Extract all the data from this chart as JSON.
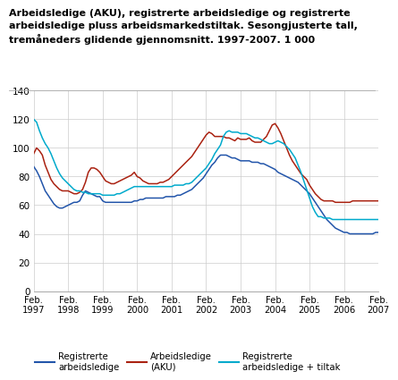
{
  "title": "Arbeidsledige (AKU), registrerte arbeidsledige og registrerte\narbeidsledige pluss arbeidsmarkedstiltak. Sesongjusterte tall,\ntremåneders glidende gjennomsnitt. 1997-2007. 1 000",
  "xlim": [
    0,
    120
  ],
  "ylim": [
    0,
    140
  ],
  "yticks": [
    0,
    20,
    40,
    60,
    80,
    100,
    120,
    140
  ],
  "xtick_positions": [
    0,
    12,
    24,
    36,
    48,
    60,
    72,
    84,
    96,
    108,
    120
  ],
  "xtick_labels": [
    "Feb.\n1997",
    "Feb.\n1998",
    "Feb.\n1999",
    "Feb.\n2000",
    "Feb.\n2001",
    "Feb.\n2002",
    "Feb.\n2003",
    "Feb.\n2004",
    "Feb.\n2005",
    "Feb.\n2006",
    "Feb.\n2007"
  ],
  "line_blue_color": "#2255aa",
  "line_red_color": "#aa2211",
  "line_cyan_color": "#00aacc",
  "legend_labels": [
    "Registrerte\narbeidsledige",
    "Arbeidsledige\n(AKU)",
    "Registrerte\narbeidsledige + tiltak"
  ],
  "blue": [
    87,
    84,
    80,
    75,
    70,
    67,
    64,
    61,
    59,
    58,
    58,
    59,
    60,
    61,
    62,
    62,
    63,
    67,
    70,
    69,
    68,
    67,
    66,
    66,
    63,
    62,
    62,
    62,
    62,
    62,
    62,
    62,
    62,
    62,
    62,
    63,
    63,
    64,
    64,
    65,
    65,
    65,
    65,
    65,
    65,
    65,
    66,
    66,
    66,
    66,
    67,
    67,
    68,
    69,
    70,
    71,
    73,
    75,
    77,
    79,
    82,
    85,
    88,
    90,
    93,
    95,
    95,
    95,
    94,
    93,
    93,
    92,
    91,
    91,
    91,
    91,
    90,
    90,
    90,
    89,
    89,
    88,
    87,
    86,
    85,
    83,
    82,
    81,
    80,
    79,
    78,
    77,
    76,
    74,
    72,
    70,
    68,
    65,
    62,
    59,
    56,
    53,
    50,
    48,
    46,
    44,
    43,
    42,
    41,
    41,
    40,
    40,
    40,
    40,
    40,
    40,
    40,
    40,
    40,
    41,
    41
  ],
  "red": [
    96,
    100,
    98,
    95,
    88,
    83,
    78,
    75,
    73,
    71,
    70,
    70,
    70,
    69,
    68,
    68,
    69,
    71,
    76,
    83,
    86,
    86,
    85,
    83,
    80,
    77,
    76,
    75,
    75,
    76,
    77,
    78,
    79,
    80,
    81,
    83,
    80,
    79,
    77,
    76,
    75,
    75,
    75,
    75,
    76,
    76,
    77,
    78,
    80,
    82,
    84,
    86,
    88,
    90,
    92,
    94,
    97,
    100,
    103,
    106,
    109,
    111,
    110,
    108,
    108,
    108,
    108,
    107,
    107,
    106,
    105,
    107,
    106,
    106,
    106,
    107,
    105,
    104,
    104,
    104,
    106,
    108,
    112,
    116,
    117,
    114,
    110,
    105,
    100,
    95,
    91,
    88,
    85,
    82,
    80,
    78,
    74,
    71,
    68,
    66,
    64,
    63,
    63,
    63,
    63,
    62,
    62,
    62,
    62,
    62,
    62,
    63,
    63,
    63,
    63,
    63,
    63,
    63,
    63,
    63,
    63
  ],
  "cyan": [
    120,
    118,
    112,
    107,
    103,
    100,
    96,
    91,
    86,
    82,
    79,
    77,
    75,
    73,
    71,
    70,
    70,
    69,
    69,
    68,
    68,
    68,
    68,
    68,
    67,
    67,
    67,
    67,
    67,
    68,
    68,
    69,
    70,
    71,
    72,
    73,
    73,
    73,
    73,
    73,
    73,
    73,
    73,
    73,
    73,
    73,
    73,
    73,
    73,
    74,
    74,
    74,
    74,
    75,
    75,
    76,
    78,
    80,
    82,
    84,
    86,
    89,
    92,
    96,
    99,
    102,
    108,
    111,
    112,
    111,
    111,
    111,
    110,
    110,
    110,
    109,
    108,
    107,
    107,
    106,
    105,
    104,
    103,
    103,
    104,
    105,
    104,
    103,
    101,
    99,
    96,
    93,
    88,
    83,
    77,
    71,
    65,
    59,
    55,
    52,
    52,
    51,
    51,
    51,
    50,
    50,
    50,
    50,
    50,
    50,
    50,
    50,
    50,
    50,
    50,
    50,
    50,
    50,
    50,
    50,
    50
  ]
}
